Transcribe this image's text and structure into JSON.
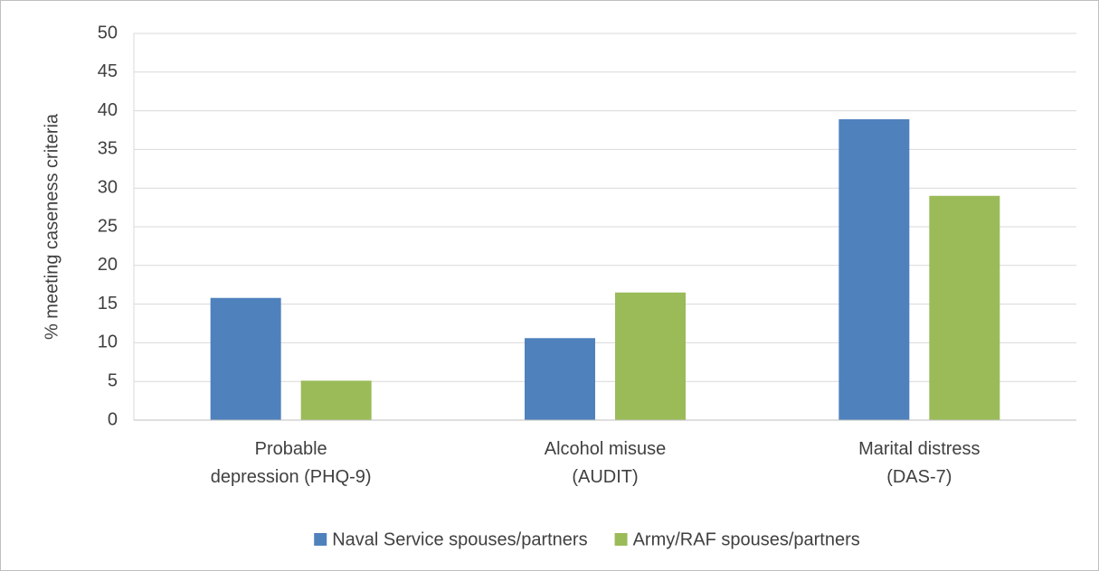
{
  "chart_data": {
    "type": "bar",
    "y_label": "% meeting caseness criteria",
    "categories": [
      "Probable\ndepression (PHQ-9)",
      "Alcohol misuse\n(AUDIT)",
      "Marital distress\n(DAS-7)"
    ],
    "series": [
      {
        "name": "Naval Service spouses/partners",
        "color": "#4f81bd",
        "values": [
          15.8,
          10.6,
          38.9
        ]
      },
      {
        "name": "Army/RAF spouses/partners",
        "color": "#9bbb59",
        "values": [
          5.1,
          16.5,
          29.0
        ]
      }
    ],
    "ylim": [
      0,
      50
    ],
    "yticks": [
      0,
      5,
      10,
      15,
      20,
      25,
      30,
      35,
      40,
      45,
      50
    ],
    "grid": true,
    "legend": "bottom"
  }
}
